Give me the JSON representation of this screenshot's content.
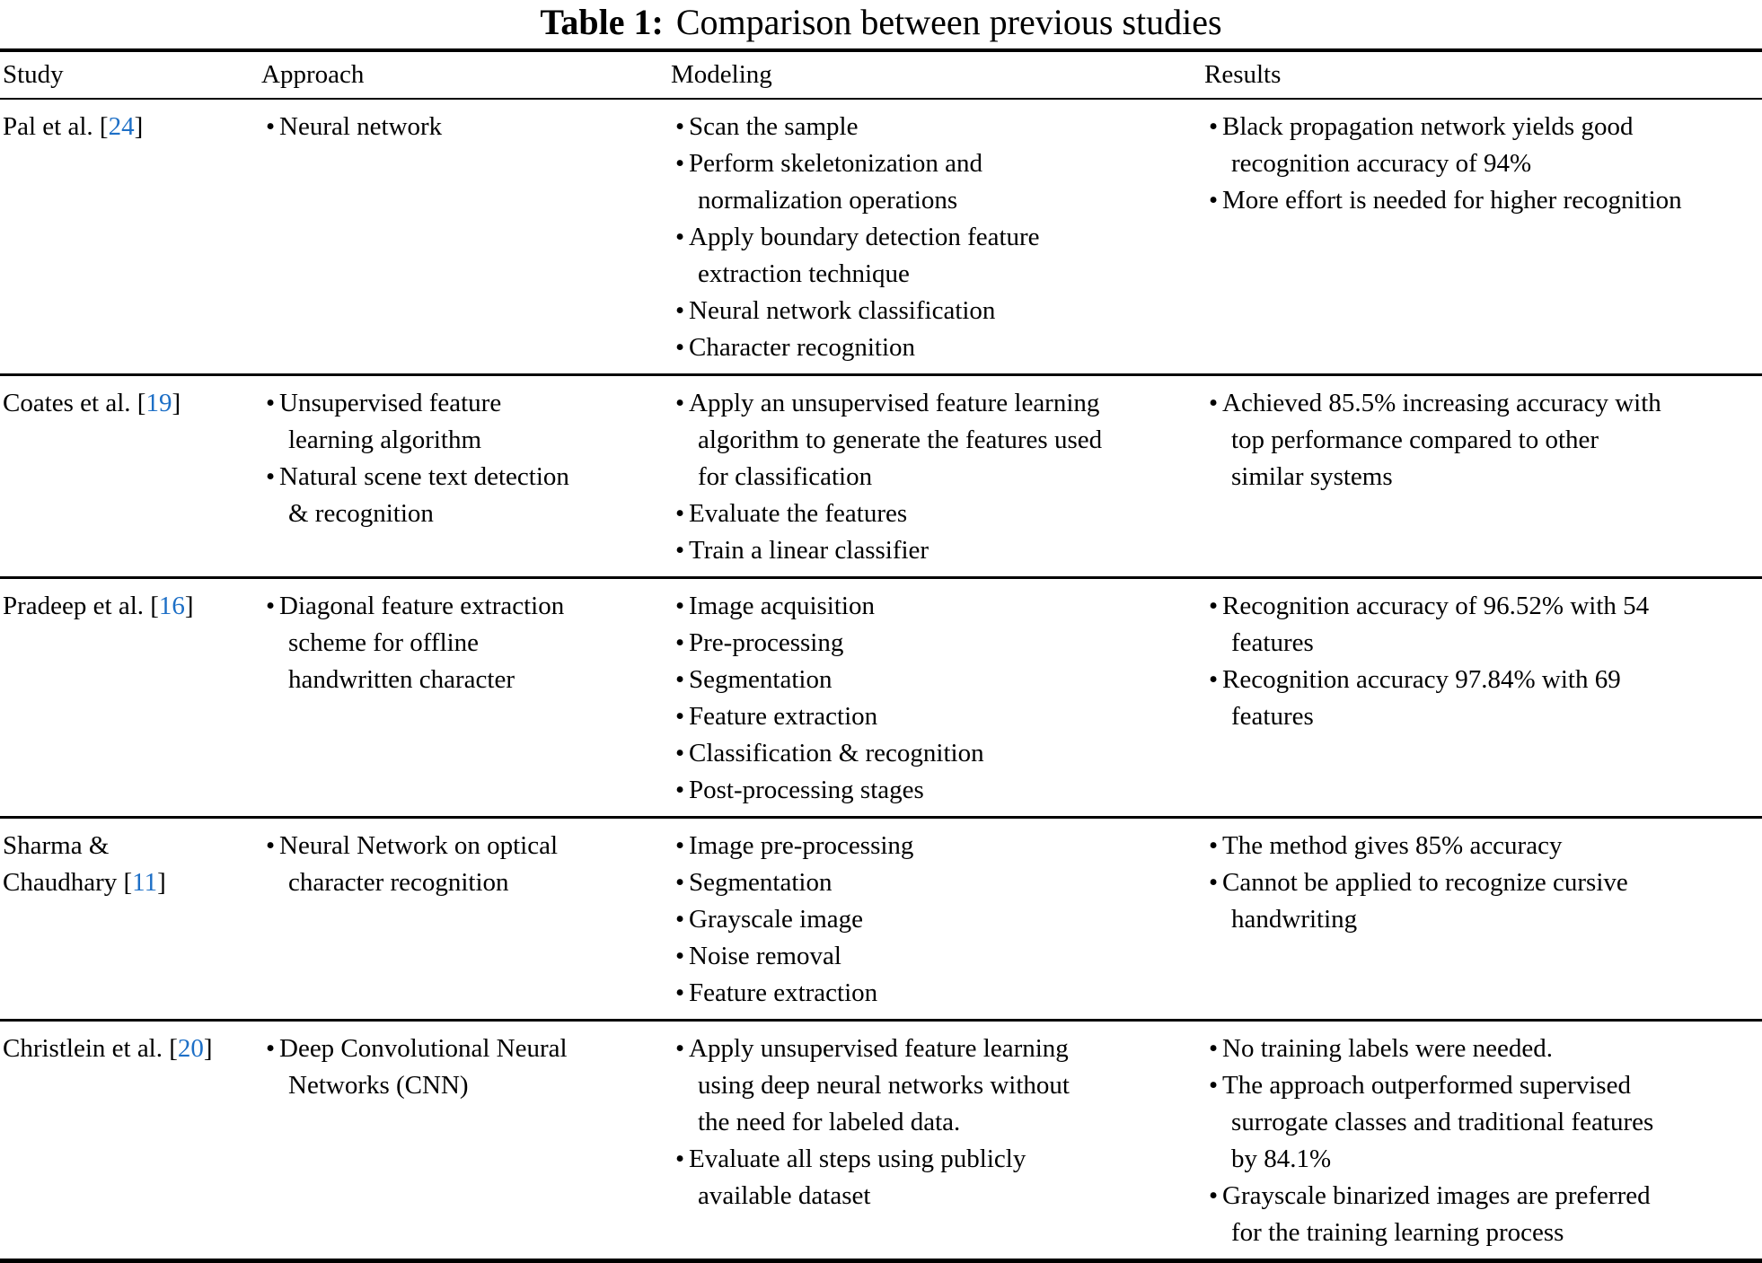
{
  "title": {
    "label": "Table 1:",
    "text": "Comparison between previous studies"
  },
  "citation_color": "#1d6fc6",
  "table": {
    "columns": [
      "Study",
      "Approach",
      "Modeling",
      "Results"
    ],
    "rows": [
      {
        "study": {
          "name_lines": [
            "Pal et al."
          ],
          "cite": "24"
        },
        "approach": [
          "Neural network"
        ],
        "modeling": [
          "Scan the sample",
          "Perform skeletonization and\nnormalization operations",
          "Apply boundary detection feature\nextraction technique",
          "Neural network classification",
          "Character recognition"
        ],
        "results": [
          "Black propagation network yields good\nrecognition accuracy of 94%",
          "More effort is needed for higher recognition"
        ]
      },
      {
        "study": {
          "name_lines": [
            "Coates et al."
          ],
          "cite": "19"
        },
        "approach": [
          "Unsupervised feature\nlearning algorithm",
          "Natural scene text detection\n& recognition"
        ],
        "modeling": [
          "Apply an unsupervised feature learning\nalgorithm to generate the features used\nfor classification",
          "Evaluate the features",
          "Train a linear classifier"
        ],
        "results": [
          "Achieved 85.5% increasing accuracy with\ntop performance compared to other\nsimilar systems"
        ]
      },
      {
        "study": {
          "name_lines": [
            "Pradeep et al."
          ],
          "cite": "16"
        },
        "approach": [
          "Diagonal feature extraction\nscheme for offline\nhandwritten character"
        ],
        "modeling": [
          "Image acquisition",
          "Pre-processing",
          "Segmentation",
          "Feature extraction",
          "Classification & recognition",
          "Post-processing stages"
        ],
        "results": [
          "Recognition accuracy of 96.52% with 54\nfeatures",
          "Recognition accuracy 97.84% with 69\nfeatures"
        ]
      },
      {
        "study": {
          "name_lines": [
            "Sharma &",
            "Chaudhary"
          ],
          "cite": "11"
        },
        "approach": [
          "Neural Network on optical\ncharacter recognition"
        ],
        "modeling": [
          "Image pre-processing",
          "Segmentation",
          "Grayscale image",
          "Noise removal",
          "Feature extraction"
        ],
        "results": [
          "The method gives 85% accuracy",
          "Cannot be applied to recognize cursive\nhandwriting"
        ]
      },
      {
        "study": {
          "name_lines": [
            "Christlein et al."
          ],
          "cite": "20"
        },
        "approach": [
          "Deep Convolutional Neural\nNetworks (CNN)"
        ],
        "modeling": [
          "Apply unsupervised feature learning\nusing deep neural networks without\nthe need for labeled data.",
          "Evaluate all steps using publicly\navailable dataset"
        ],
        "results": [
          "No training labels were needed.",
          "The approach outperformed supervised\nsurrogate classes and traditional features\nby 84.1%",
          "Grayscale binarized images are preferred\nfor the training learning process"
        ]
      }
    ]
  }
}
